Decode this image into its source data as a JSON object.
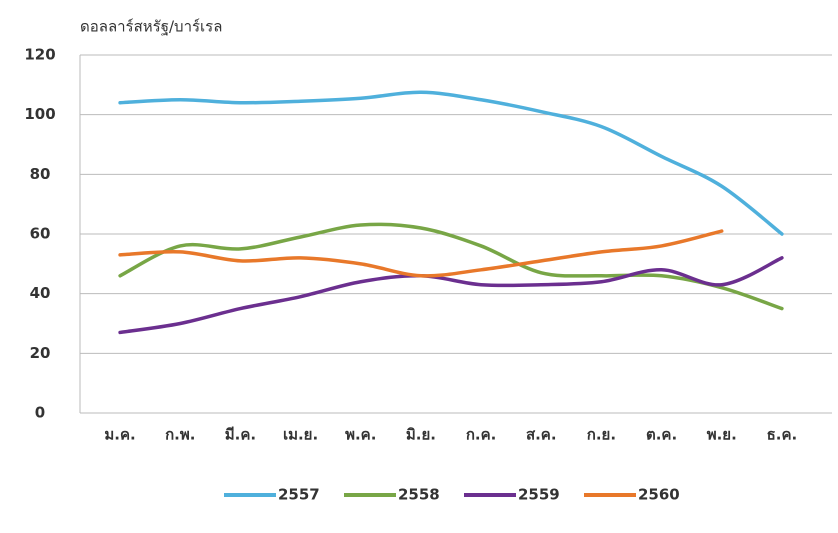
{
  "chart_data": {
    "type": "line",
    "title": "ดอลลาร์สหรัฐ/บาร์เรล",
    "categories": [
      "ม.ค.",
      "ก.พ.",
      "มี.ค.",
      "เม.ย.",
      "พ.ค.",
      "มิ.ย.",
      "ก.ค.",
      "ส.ค.",
      "ก.ย.",
      "ต.ค.",
      "พ.ย.",
      "ธ.ค."
    ],
    "series": [
      {
        "name": "2557",
        "color": "#4fb0dc",
        "values": [
          104,
          105,
          104,
          104.5,
          105.5,
          107.5,
          105,
          101,
          96,
          86,
          76,
          60
        ]
      },
      {
        "name": "2558",
        "color": "#78a646",
        "values": [
          46,
          56,
          55,
          59,
          63,
          62,
          56,
          47,
          46,
          46,
          42,
          35
        ]
      },
      {
        "name": "2559",
        "color": "#6b2f8f",
        "values": [
          27,
          30,
          35,
          39,
          44,
          46,
          43,
          43,
          44,
          48,
          43,
          52
        ]
      },
      {
        "name": "2560",
        "color": "#e8782a",
        "values": [
          53,
          54,
          51,
          52,
          50,
          46,
          48,
          51,
          54,
          56,
          61,
          null
        ]
      }
    ],
    "ylim": [
      0,
      120
    ],
    "yticks": [
      0,
      20,
      40,
      60,
      80,
      100,
      120
    ],
    "grid": true
  }
}
